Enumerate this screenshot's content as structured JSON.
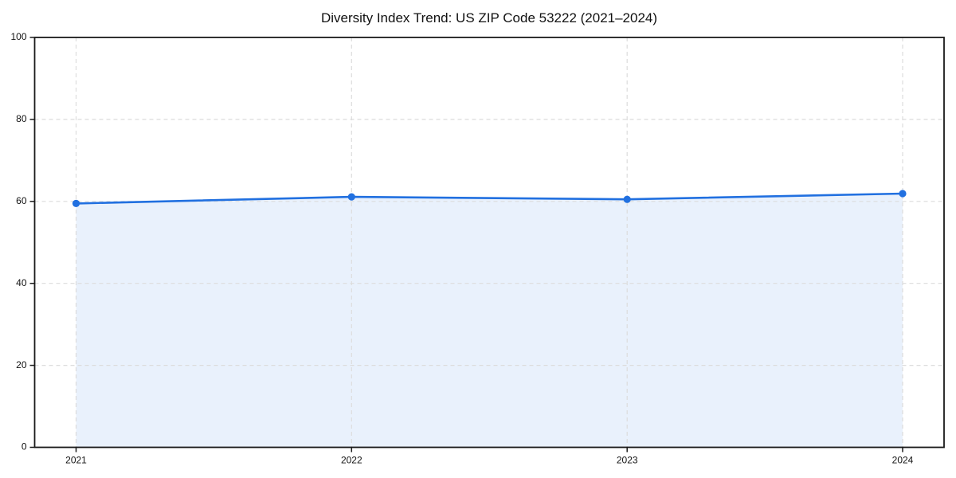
{
  "chart_data": {
    "type": "line",
    "title": "Diversity Index Trend: US ZIP Code 53222 (2021–2024)",
    "xlabel": "",
    "ylabel": "",
    "categories": [
      "2021",
      "2022",
      "2023",
      "2024"
    ],
    "series": [
      {
        "name": "Diversity Index",
        "values": [
          59.5,
          61.1,
          60.5,
          61.9
        ]
      }
    ],
    "ylim": [
      0,
      100
    ],
    "yticks": [
      0,
      20,
      40,
      60,
      80,
      100
    ],
    "grid": true,
    "grid_style": "dashed",
    "legend_position": "none",
    "area_fill_under_line": true,
    "marker": "circle",
    "colors": {
      "line": "#2170e0",
      "marker": "#2170e0",
      "area_fill": "#e9f1fc",
      "grid": "#dcdcdc",
      "axis": "#1a1a1a",
      "text": "#111111",
      "background": "#ffffff"
    }
  }
}
